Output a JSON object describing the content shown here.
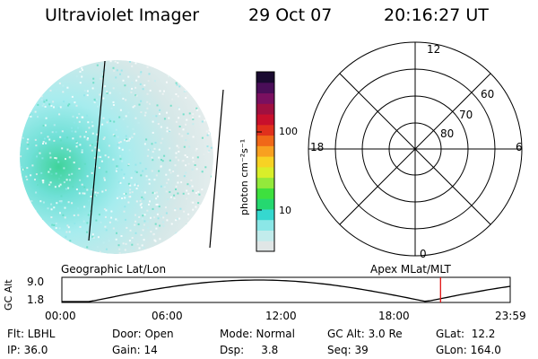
{
  "header": {
    "title": "Ultraviolet Imager",
    "date": "29 Oct 07",
    "time": "20:16:27 UT"
  },
  "colorbar": {
    "label": "photon cm⁻²s⁻¹",
    "ticks": [
      "100",
      "10"
    ],
    "colors": [
      "#e0e6e6",
      "#c2ecec",
      "#8be7e7",
      "#35d8cf",
      "#25d870",
      "#3ee03e",
      "#93e93b",
      "#d9ee2a",
      "#f7d224",
      "#f8a020",
      "#f06818",
      "#e0301c",
      "#c8102c",
      "#a01040",
      "#7a1060",
      "#4a0e58",
      "#1a0a30"
    ]
  },
  "polar_plot": {
    "clock_labels": {
      "top": "12",
      "bottom": "0",
      "left": "18",
      "right": "6"
    },
    "latitude_labels": [
      "60",
      "70",
      "80"
    ]
  },
  "timeline": {
    "y_axis_label": "GC Alt",
    "y_ticks": [
      "9.0",
      "1.8"
    ],
    "left_caption": "Geographic Lat/Lon",
    "right_caption": "Apex MLat/MLT",
    "x_ticks": [
      "00:00",
      "06:00",
      "12:00",
      "18:00",
      "23:59"
    ],
    "current_hour": 20.27
  },
  "info": {
    "row1": [
      "Flt: LBHL",
      "Door: Open",
      "Mode: Normal",
      "GC Alt: 3.0 Re",
      "GLat:  12.2"
    ],
    "row2": [
      "IP: 36.0",
      "Gain: 14",
      "Dsp:     3.8",
      "Seq: 39",
      "GLon: 164.0"
    ]
  },
  "colors": {
    "cursor": "#e01010",
    "accent_cyan": "#7fe3e8",
    "accent_green": "#2fd67a"
  }
}
